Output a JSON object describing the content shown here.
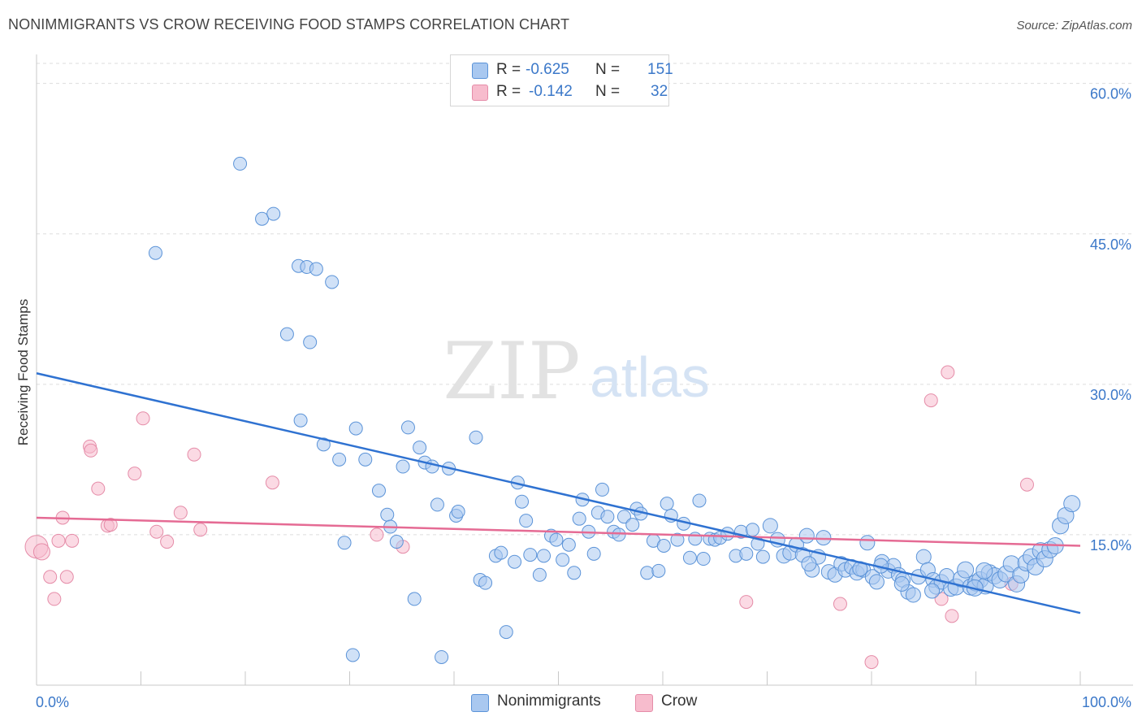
{
  "title": "NONIMMIGRANTS VS CROW RECEIVING FOOD STAMPS CORRELATION CHART",
  "source": "Source: ZipAtlas.com",
  "watermark": {
    "zip": "ZIP",
    "atlas": "atlas"
  },
  "legend_top": {
    "rows": [
      {
        "r_label": "R =",
        "r_value": "-0.625",
        "n_label": "N =",
        "n_value": "151"
      },
      {
        "r_label": "R =",
        "r_value": "-0.142",
        "n_label": "N =",
        "n_value": "32"
      }
    ]
  },
  "legend_bottom": {
    "series1": "Nonimmigrants",
    "series2": "Crow"
  },
  "colors": {
    "blue_fill": "#a9c8f0",
    "blue_stroke": "#5b93d8",
    "blue_line": "#2f72d1",
    "pink_fill": "#f7bccd",
    "pink_stroke": "#e58ca8",
    "pink_line": "#e56b94",
    "tick_label": "#3b78c9",
    "grid": "#dddddd"
  },
  "chart_data": {
    "type": "scatter",
    "title": "NONIMMIGRANTS VS CROW RECEIVING FOOD STAMPS CORRELATION CHART",
    "xlabel": "",
    "ylabel": "Receiving Food Stamps",
    "xlim": [
      0,
      100
    ],
    "ylim": [
      0,
      62
    ],
    "x_tick_labels": [
      "0.0%",
      "100.0%"
    ],
    "y_ticks": [
      15,
      30,
      45,
      60
    ],
    "y_tick_labels": [
      "15.0%",
      "30.0%",
      "45.0%",
      "60.0%"
    ],
    "grid": true,
    "legend_position": "top-center",
    "series": [
      {
        "name": "Nonimmigrants",
        "color": "#a9c8f0",
        "r": -0.625,
        "n": 151,
        "trend": {
          "x": [
            0,
            100
          ],
          "y": [
            31.1,
            7.2
          ]
        },
        "points": [
          [
            11.4,
            43.1
          ],
          [
            19.5,
            52.0
          ],
          [
            21.6,
            46.5
          ],
          [
            22.7,
            47.0
          ],
          [
            24.0,
            35.0
          ],
          [
            25.3,
            26.4
          ],
          [
            26.2,
            34.2
          ],
          [
            27.5,
            24.0
          ],
          [
            28.3,
            40.2
          ],
          [
            25.1,
            41.8
          ],
          [
            25.9,
            41.7
          ],
          [
            26.8,
            41.5
          ],
          [
            29.0,
            22.5
          ],
          [
            29.5,
            14.2
          ],
          [
            30.3,
            3.0
          ],
          [
            30.6,
            25.6
          ],
          [
            31.5,
            22.5
          ],
          [
            32.8,
            19.4
          ],
          [
            33.6,
            17.0
          ],
          [
            33.9,
            15.8
          ],
          [
            34.5,
            14.3
          ],
          [
            35.1,
            21.8
          ],
          [
            35.6,
            25.7
          ],
          [
            36.2,
            8.6
          ],
          [
            36.7,
            23.7
          ],
          [
            37.2,
            22.2
          ],
          [
            37.9,
            21.8
          ],
          [
            38.4,
            18.0
          ],
          [
            38.8,
            2.8
          ],
          [
            39.5,
            21.6
          ],
          [
            40.2,
            16.9
          ],
          [
            40.4,
            17.3
          ],
          [
            42.1,
            24.7
          ],
          [
            42.5,
            10.5
          ],
          [
            43.0,
            10.2
          ],
          [
            44.0,
            12.9
          ],
          [
            44.5,
            13.2
          ],
          [
            45.0,
            5.3
          ],
          [
            45.8,
            12.3
          ],
          [
            46.1,
            20.2
          ],
          [
            46.5,
            18.3
          ],
          [
            46.9,
            16.4
          ],
          [
            47.3,
            13.0
          ],
          [
            48.2,
            11.0
          ],
          [
            48.6,
            12.9
          ],
          [
            49.3,
            14.9
          ],
          [
            49.8,
            14.5
          ],
          [
            50.4,
            12.5
          ],
          [
            51.0,
            14.0
          ],
          [
            51.5,
            11.2
          ],
          [
            52.0,
            16.6
          ],
          [
            52.3,
            18.5
          ],
          [
            52.9,
            15.3
          ],
          [
            53.4,
            13.1
          ],
          [
            53.8,
            17.2
          ],
          [
            54.2,
            19.5
          ],
          [
            54.7,
            16.8
          ],
          [
            55.3,
            15.3
          ],
          [
            55.8,
            15.0
          ],
          [
            56.3,
            16.8
          ],
          [
            57.1,
            16.0
          ],
          [
            57.5,
            17.6
          ],
          [
            57.9,
            17.1
          ],
          [
            58.5,
            11.2
          ],
          [
            59.1,
            14.4
          ],
          [
            59.6,
            11.4
          ],
          [
            60.1,
            13.9
          ],
          [
            60.4,
            18.1
          ],
          [
            60.8,
            16.9
          ],
          [
            61.4,
            14.5
          ],
          [
            62.0,
            16.1
          ],
          [
            62.6,
            12.7
          ],
          [
            63.1,
            14.6
          ],
          [
            63.5,
            18.4
          ],
          [
            63.9,
            12.6
          ],
          [
            64.5,
            14.6
          ],
          [
            65.0,
            14.5
          ],
          [
            65.5,
            14.7
          ],
          [
            66.2,
            15.1
          ],
          [
            67.0,
            12.9
          ],
          [
            67.5,
            15.3
          ],
          [
            68.0,
            13.1
          ],
          [
            68.6,
            15.5
          ],
          [
            69.1,
            14.1
          ],
          [
            69.6,
            12.8
          ],
          [
            70.3,
            15.9
          ],
          [
            71.0,
            14.5
          ],
          [
            71.6,
            12.9
          ],
          [
            72.2,
            13.2
          ],
          [
            72.8,
            14.0
          ],
          [
            73.4,
            13.0
          ],
          [
            73.8,
            14.9
          ],
          [
            74.3,
            11.5
          ],
          [
            74.9,
            12.8
          ],
          [
            75.4,
            14.7
          ],
          [
            75.9,
            11.3
          ],
          [
            76.5,
            11.0
          ],
          [
            77.1,
            12.1
          ],
          [
            77.5,
            11.5
          ],
          [
            78.1,
            11.8
          ],
          [
            78.6,
            11.2
          ],
          [
            79.2,
            11.5
          ],
          [
            79.6,
            14.2
          ],
          [
            80.1,
            10.8
          ],
          [
            80.5,
            10.3
          ],
          [
            81.0,
            12.3
          ],
          [
            81.6,
            11.4
          ],
          [
            82.1,
            11.9
          ],
          [
            82.6,
            11.0
          ],
          [
            83.0,
            10.5
          ],
          [
            83.5,
            9.3
          ],
          [
            84.0,
            9.0
          ],
          [
            84.5,
            10.8
          ],
          [
            85.0,
            12.8
          ],
          [
            85.4,
            11.5
          ],
          [
            85.9,
            10.5
          ],
          [
            86.2,
            9.8
          ],
          [
            86.7,
            10.3
          ],
          [
            87.2,
            10.9
          ],
          [
            87.6,
            9.6
          ],
          [
            88.1,
            9.8
          ],
          [
            88.6,
            10.6
          ],
          [
            89.0,
            11.5
          ],
          [
            89.5,
            9.8
          ],
          [
            90.0,
            10.2
          ],
          [
            90.4,
            10.5
          ],
          [
            90.9,
            9.9
          ],
          [
            91.3,
            11.2
          ],
          [
            91.8,
            10.9
          ],
          [
            92.3,
            10.5
          ],
          [
            92.9,
            11.1
          ],
          [
            93.4,
            12.1
          ],
          [
            93.9,
            10.1
          ],
          [
            94.3,
            11.0
          ],
          [
            94.8,
            12.2
          ],
          [
            95.3,
            12.8
          ],
          [
            95.7,
            11.8
          ],
          [
            96.2,
            13.4
          ],
          [
            96.6,
            12.6
          ],
          [
            97.1,
            13.5
          ],
          [
            97.6,
            13.9
          ],
          [
            98.1,
            15.9
          ],
          [
            98.6,
            16.9
          ],
          [
            99.2,
            18.1
          ],
          [
            90.8,
            11.4
          ],
          [
            89.9,
            9.7
          ],
          [
            85.8,
            9.4
          ],
          [
            82.9,
            10.1
          ],
          [
            80.9,
            11.9
          ],
          [
            78.9,
            11.6
          ],
          [
            74.0,
            12.1
          ]
        ]
      },
      {
        "name": "Crow",
        "color": "#f7bccd",
        "r": -0.142,
        "n": 32,
        "trend": {
          "x": [
            0,
            100
          ],
          "y": [
            16.7,
            13.9
          ]
        },
        "points": [
          [
            0.0,
            13.8
          ],
          [
            0.5,
            13.3
          ],
          [
            1.3,
            10.8
          ],
          [
            1.7,
            8.6
          ],
          [
            2.1,
            14.4
          ],
          [
            2.5,
            16.7
          ],
          [
            2.9,
            10.8
          ],
          [
            3.4,
            14.4
          ],
          [
            5.1,
            23.8
          ],
          [
            5.2,
            23.4
          ],
          [
            5.9,
            19.6
          ],
          [
            6.8,
            15.9
          ],
          [
            7.1,
            16.0
          ],
          [
            9.4,
            21.1
          ],
          [
            10.2,
            26.6
          ],
          [
            11.5,
            15.3
          ],
          [
            12.5,
            14.3
          ],
          [
            13.8,
            17.2
          ],
          [
            15.1,
            23.0
          ],
          [
            15.7,
            15.5
          ],
          [
            22.6,
            20.2
          ],
          [
            32.6,
            15.0
          ],
          [
            35.1,
            13.8
          ],
          [
            68.0,
            8.3
          ],
          [
            77.0,
            8.1
          ],
          [
            80.0,
            2.3
          ],
          [
            85.7,
            28.4
          ],
          [
            86.7,
            8.6
          ],
          [
            87.3,
            31.2
          ],
          [
            87.7,
            6.9
          ],
          [
            93.4,
            10.1
          ],
          [
            94.9,
            20.0
          ]
        ]
      }
    ]
  }
}
